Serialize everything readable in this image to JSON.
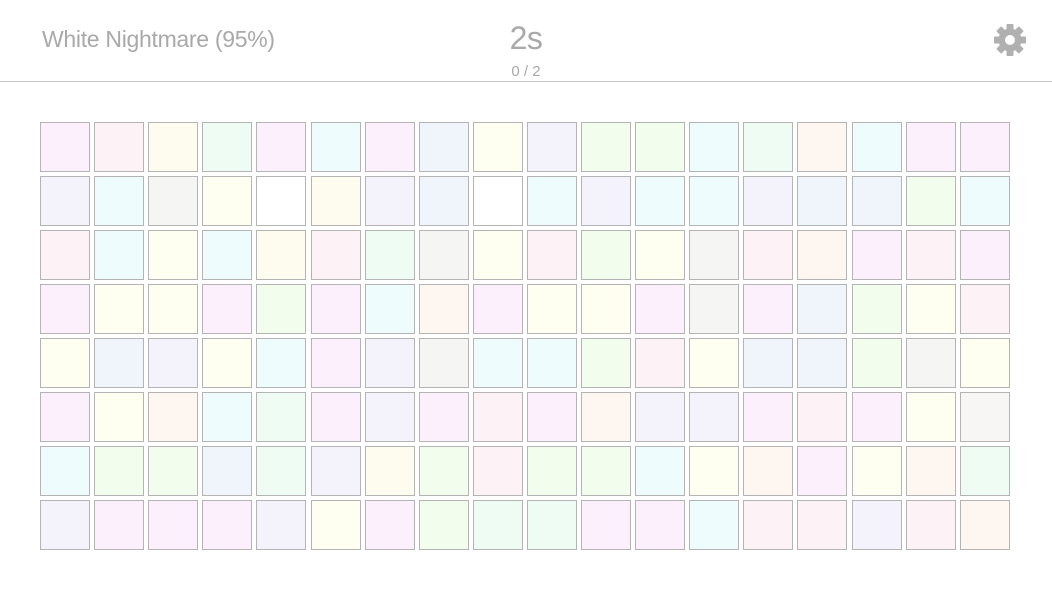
{
  "header": {
    "title": "White Nightmare (95%)",
    "timer": "2s",
    "progress": "0 / 2",
    "settings_icon": "gear-icon"
  },
  "colors": {
    "header_text": "#a9a9a9",
    "divider": "#c8c8c8",
    "tile_border": "#b4b4b4"
  },
  "grid": {
    "rows": [
      [
        "#fcf0fc",
        "#fdf2f6",
        "#fefcef",
        "#effcf4",
        "#fcf0fc",
        "#eefcfd",
        "#fcf0fc",
        "#f0f5fc",
        "#fefff0",
        "#f4f3fb",
        "#f3fdee",
        "#f3fdee",
        "#eefcfd",
        "#effcf4",
        "#fdf6f1",
        "#eefcfd",
        "#fcf0fc",
        "#fcf0fc"
      ],
      [
        "#f4f3fb",
        "#eefcfd",
        "#f5f6f4",
        "#fefff0",
        "#ffffff",
        "#fefcef",
        "#f4f3fb",
        "#f0f5fc",
        "#ffffff",
        "#eefcfd",
        "#f4f3fb",
        "#eefcfd",
        "#eefcfd",
        "#f4f3fb",
        "#f0f5fc",
        "#f0f5fc",
        "#f3fdee",
        "#eefcfd"
      ],
      [
        "#fdf2f6",
        "#eefcfd",
        "#fefff0",
        "#eefcfd",
        "#fefcef",
        "#fdf2f6",
        "#effcf4",
        "#f5f6f4",
        "#fefff0",
        "#fdf2f6",
        "#f3fdee",
        "#fefff0",
        "#f5f6f4",
        "#fdf2f6",
        "#fdf6f1",
        "#fcf0fc",
        "#fdf2f6",
        "#fcf0fc"
      ],
      [
        "#fcf0fc",
        "#fefff0",
        "#fefff0",
        "#fcf0fc",
        "#f3fdee",
        "#fcf0fc",
        "#eefcfd",
        "#fdf6f1",
        "#fcf0fc",
        "#fefff0",
        "#fefff0",
        "#fcf0fc",
        "#f5f6f4",
        "#fcf0fc",
        "#f0f5fc",
        "#f3fdee",
        "#fefff0",
        "#fdf2f6"
      ],
      [
        "#fefff0",
        "#f0f5fc",
        "#f4f3fb",
        "#fefff0",
        "#eefcfd",
        "#fcf0fc",
        "#f4f3fb",
        "#f5f6f4",
        "#eefcfd",
        "#eefcfd",
        "#f3fdee",
        "#fdf2f6",
        "#fefff0",
        "#f0f5fc",
        "#f0f5fc",
        "#f3fdee",
        "#f5f6f4",
        "#fefff0"
      ],
      [
        "#fcf0fc",
        "#fefff0",
        "#fdf6f1",
        "#eefcfd",
        "#effcf4",
        "#fcf0fc",
        "#f4f3fb",
        "#fcf0fc",
        "#fdf2f6",
        "#fcf0fc",
        "#fdf6f1",
        "#f4f3fb",
        "#f4f3fb",
        "#fcf0fc",
        "#fdf2f6",
        "#fcf0fc",
        "#fefff0",
        "#f8f6f4"
      ],
      [
        "#eefcfd",
        "#f3fdee",
        "#f3fdee",
        "#f0f5fc",
        "#effcf4",
        "#f4f3fb",
        "#fefcef",
        "#f3fdee",
        "#fdf2f6",
        "#f3fdee",
        "#f3fdee",
        "#eefcfd",
        "#fefff0",
        "#fdf6f1",
        "#fcf0fc",
        "#fefff0",
        "#fdf6f1",
        "#effcf4"
      ],
      [
        "#f4f3fb",
        "#fcf0fc",
        "#fcf0fc",
        "#fcf0fc",
        "#f4f3fb",
        "#fefff0",
        "#fcf0fc",
        "#f3fdee",
        "#effcf4",
        "#effcf4",
        "#fcf0fc",
        "#fcf0fc",
        "#eefcfd",
        "#fdf2f6",
        "#fdf2f6",
        "#f4f3fb",
        "#fdf2f6",
        "#fdf6f1"
      ]
    ]
  }
}
